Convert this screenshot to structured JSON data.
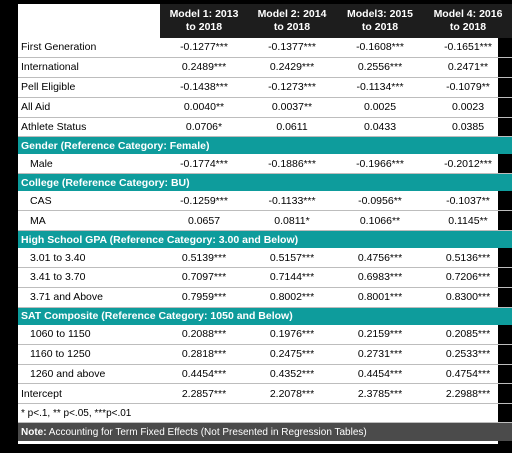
{
  "columns": [
    "Model 1: 2013 to 2018",
    "Model 2: 2014 to 2018",
    "Model3: 2015 to 2018",
    "Model 4: 2016 to 2018"
  ],
  "column_lines": [
    [
      "Model 1: 2013",
      "to 2018"
    ],
    [
      "Model 2: 2014",
      "to 2018"
    ],
    [
      "Model3: 2015",
      "to 2018"
    ],
    [
      "Model 4: 2016",
      "to 2018"
    ]
  ],
  "sections": [
    {
      "title": "",
      "rows": [
        {
          "label": "First Generation",
          "values": [
            "-0.1277***",
            "-0.1377***",
            "-0.1608***",
            "-0.1651***"
          ]
        },
        {
          "label": "International",
          "values": [
            "0.2489***",
            "0.2429***",
            "0.2556***",
            "0.2471**"
          ]
        },
        {
          "label": "Pell Eligible",
          "values": [
            "-0.1438***",
            "-0.1273***",
            "-0.1134***",
            "-0.1079**"
          ]
        },
        {
          "label": "All Aid",
          "values": [
            "0.0040**",
            "0.0037**",
            "0.0025",
            "0.0023"
          ]
        },
        {
          "label": "Athlete Status",
          "values": [
            "0.0706*",
            "0.0611",
            "0.0433",
            "0.0385"
          ]
        }
      ]
    },
    {
      "title": "Gender (Reference Category: Female)",
      "rows": [
        {
          "label": "Male",
          "values": [
            "-0.1774***",
            "-0.1886***",
            "-0.1966***",
            "-0.2012***"
          ]
        }
      ]
    },
    {
      "title": "College (Reference Category: BU)",
      "rows": [
        {
          "label": "CAS",
          "values": [
            "-0.1259***",
            "-0.1133***",
            "-0.0956**",
            "-0.1037**"
          ]
        },
        {
          "label": "MA",
          "values": [
            "0.0657",
            "0.0811*",
            "0.1066**",
            "0.1145**"
          ]
        }
      ]
    },
    {
      "title": "High School GPA (Reference Category: 3.00 and Below)",
      "rows": [
        {
          "label": "3.01 to 3.40",
          "values": [
            "0.5139***",
            "0.5157***",
            "0.4756***",
            "0.5136***"
          ]
        },
        {
          "label": "3.41 to 3.70",
          "values": [
            "0.7097***",
            "0.7144***",
            "0.6983***",
            "0.7206***"
          ]
        },
        {
          "label": "3.71 and Above",
          "values": [
            "0.7959***",
            "0.8002***",
            "0.8001***",
            "0.8300***"
          ]
        }
      ]
    },
    {
      "title": "SAT Composite (Reference Category: 1050 and Below)",
      "rows": [
        {
          "label": "1060 to 1150",
          "values": [
            "0.2088***",
            "0.1976***",
            "0.2159***",
            "0.2085***"
          ]
        },
        {
          "label": "1160 to 1250",
          "values": [
            "0.2818***",
            "0.2475***",
            "0.2731***",
            "0.2533***"
          ]
        },
        {
          "label": "1260 and above",
          "values": [
            "0.4454***",
            "0.4352***",
            "0.4454***",
            "0.4754***"
          ]
        }
      ]
    }
  ],
  "intercept": {
    "label": "Intercept",
    "values": [
      "2.2857***",
      "2.2078***",
      "2.3785***",
      "2.2988***"
    ]
  },
  "significance_note": "* p<.1, ** p<.05, ***p<.01",
  "note_label": "Note:",
  "note_text": " Accounting for Term Fixed Effects (Not Presented in Regression Tables)"
}
